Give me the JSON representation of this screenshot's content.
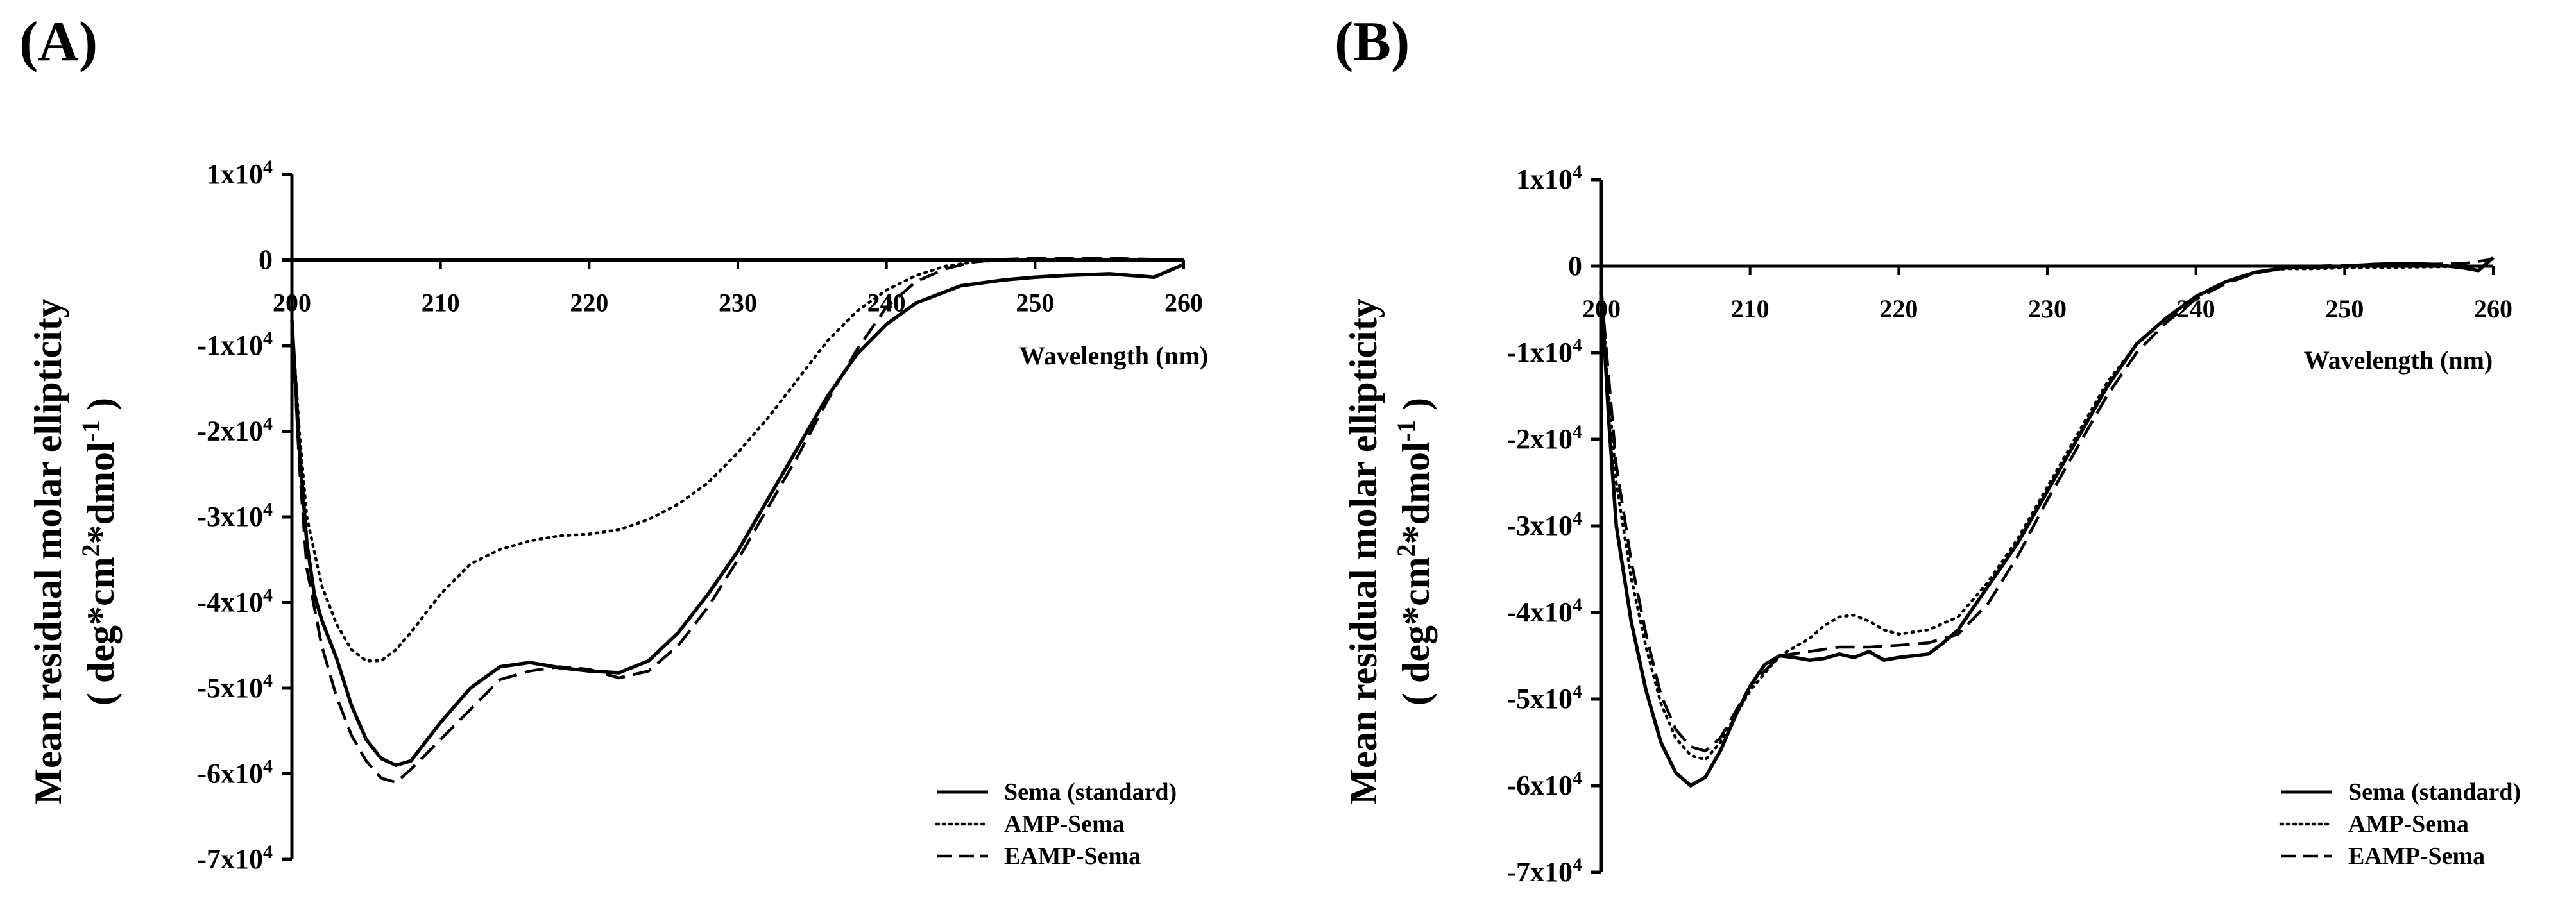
{
  "chart_data": [
    {
      "panel": "(A)",
      "type": "line",
      "title": "",
      "xlabel": "Wavelength (nm)",
      "ylabel_line1": "Mean residual molar ellipticity",
      "ylabel_line2_pre": "( deg*cm",
      "ylabel_sup1": "2",
      "ylabel_line2_mid": "*dmol",
      "ylabel_sup2": "-1",
      "ylabel_line2_post": " )",
      "xlim": [
        200,
        260
      ],
      "ylim": [
        -70000,
        10000
      ],
      "xticks": [
        "200",
        "210",
        "220",
        "230",
        "240",
        "250",
        "260"
      ],
      "yticks": [
        {
          "value": 10000,
          "base": "1x10",
          "exp": "4"
        },
        {
          "value": 0,
          "base": "0",
          "exp": ""
        },
        {
          "value": -10000,
          "base": "-1x10",
          "exp": "4"
        },
        {
          "value": -20000,
          "base": "-2x10",
          "exp": "4"
        },
        {
          "value": -30000,
          "base": "-3x10",
          "exp": "4"
        },
        {
          "value": -40000,
          "base": "-4x10",
          "exp": "4"
        },
        {
          "value": -50000,
          "base": "-5x10",
          "exp": "4"
        },
        {
          "value": -60000,
          "base": "-6x10",
          "exp": "4"
        },
        {
          "value": -70000,
          "base": "-7x10",
          "exp": "4"
        }
      ],
      "series": [
        {
          "name": "Sema (standard)",
          "style": "solid",
          "x": [
            200,
            200.5,
            201,
            201.5,
            202,
            203,
            204,
            205,
            206,
            207,
            208,
            210,
            212,
            214,
            216,
            218,
            220,
            222,
            224,
            226,
            228,
            230,
            232,
            234,
            236,
            238,
            240,
            242,
            245,
            248,
            250,
            252,
            255,
            258,
            260
          ],
          "y": [
            -7000,
            -22000,
            -33000,
            -39000,
            -42000,
            -46500,
            -52000,
            -56000,
            -58200,
            -59000,
            -58500,
            -54000,
            -50000,
            -47500,
            -47000,
            -47600,
            -48000,
            -48200,
            -46800,
            -43500,
            -39000,
            -34000,
            -28000,
            -22000,
            -16000,
            -11000,
            -7500,
            -5000,
            -3000,
            -2300,
            -2000,
            -1800,
            -1600,
            -2000,
            -500
          ]
        },
        {
          "name": "AMP-Sema",
          "style": "dotted",
          "x": [
            200,
            200.5,
            201,
            202,
            203,
            204,
            205,
            206,
            207,
            208,
            210,
            212,
            214,
            216,
            218,
            220,
            222,
            224,
            226,
            228,
            230,
            232,
            234,
            236,
            238,
            240,
            242,
            244,
            246,
            248,
            250,
            255,
            260
          ],
          "y": [
            -7000,
            -20000,
            -30000,
            -38000,
            -42500,
            -45500,
            -46800,
            -46800,
            -45500,
            -43500,
            -39000,
            -35500,
            -33800,
            -32800,
            -32200,
            -32000,
            -31500,
            -30300,
            -28500,
            -26000,
            -22500,
            -18500,
            -14000,
            -9500,
            -6000,
            -3500,
            -1800,
            -700,
            -200,
            0,
            100,
            0,
            0
          ]
        },
        {
          "name": "EAMP-Sema",
          "style": "dashed",
          "x": [
            200,
            200.5,
            201,
            202,
            203,
            204,
            205,
            206,
            207,
            208,
            210,
            212,
            214,
            216,
            218,
            220,
            222,
            224,
            226,
            228,
            230,
            232,
            234,
            236,
            238,
            240,
            242,
            244,
            246,
            248,
            250,
            255,
            260
          ],
          "y": [
            -7000,
            -24000,
            -36000,
            -45000,
            -51000,
            -55500,
            -58500,
            -60500,
            -61000,
            -59500,
            -56000,
            -52500,
            -49000,
            -48000,
            -47500,
            -47800,
            -48800,
            -48000,
            -45000,
            -40500,
            -35000,
            -29000,
            -23000,
            -16500,
            -10500,
            -5500,
            -2500,
            -1000,
            -200,
            100,
            200,
            200,
            0
          ]
        }
      ]
    },
    {
      "panel": "(B)",
      "type": "line",
      "title": "",
      "xlabel": "Wavelength (nm)",
      "ylabel_line1": "Mean residual molar ellipticity",
      "ylabel_line2_pre": "( deg*cm",
      "ylabel_sup1": "2",
      "ylabel_line2_mid": "*dmol",
      "ylabel_sup2": "-1",
      "ylabel_line2_post": " )",
      "xlim": [
        200,
        260
      ],
      "ylim": [
        -70000,
        10000
      ],
      "xticks": [
        "200",
        "210",
        "220",
        "230",
        "240",
        "250",
        "260"
      ],
      "yticks": [
        {
          "value": 10000,
          "base": "1x10",
          "exp": "4"
        },
        {
          "value": 0,
          "base": "0",
          "exp": ""
        },
        {
          "value": -10000,
          "base": "-1x10",
          "exp": "4"
        },
        {
          "value": -20000,
          "base": "-2x10",
          "exp": "4"
        },
        {
          "value": -30000,
          "base": "-3x10",
          "exp": "4"
        },
        {
          "value": -40000,
          "base": "-4x10",
          "exp": "4"
        },
        {
          "value": -50000,
          "base": "-5x10",
          "exp": "4"
        },
        {
          "value": -60000,
          "base": "-6x10",
          "exp": "4"
        },
        {
          "value": -70000,
          "base": "-7x10",
          "exp": "4"
        }
      ],
      "series": [
        {
          "name": "Sema (standard)",
          "style": "solid",
          "x": [
            200,
            200.5,
            201,
            202,
            203,
            204,
            205,
            206,
            207,
            208,
            209,
            210,
            211,
            212,
            213,
            214,
            215,
            216,
            217,
            218,
            219,
            220,
            221,
            222,
            223,
            224,
            226,
            228,
            230,
            232,
            234,
            236,
            238,
            240,
            242,
            244,
            246,
            248,
            250,
            252,
            254,
            256,
            258,
            259,
            260
          ],
          "y": [
            -3000,
            -18000,
            -30000,
            -41000,
            -49000,
            -55000,
            -58500,
            -60000,
            -59000,
            -56000,
            -52000,
            -48500,
            -46000,
            -45000,
            -45200,
            -45500,
            -45300,
            -44800,
            -45200,
            -44500,
            -45500,
            -45200,
            -45000,
            -44800,
            -43500,
            -42000,
            -37000,
            -32000,
            -26000,
            -20000,
            -14000,
            -9000,
            -6000,
            -3500,
            -1800,
            -700,
            -200,
            -100,
            0,
            200,
            300,
            200,
            -200,
            -500,
            1000
          ]
        },
        {
          "name": "AMP-Sema",
          "style": "dotted",
          "x": [
            200,
            200.5,
            201,
            202,
            203,
            204,
            205,
            206,
            207,
            208,
            210,
            212,
            214,
            215,
            216,
            217,
            218,
            219,
            220,
            222,
            224,
            226,
            228,
            230,
            232,
            234,
            236,
            238,
            240,
            242,
            244,
            246,
            248,
            250,
            255,
            260
          ],
          "y": [
            -3000,
            -15000,
            -25000,
            -36000,
            -44000,
            -50500,
            -54500,
            -56500,
            -57000,
            -55000,
            -49000,
            -45000,
            -43000,
            -41500,
            -40500,
            -40300,
            -41000,
            -42000,
            -42500,
            -42000,
            -40500,
            -36500,
            -31500,
            -25500,
            -19500,
            -13500,
            -9000,
            -6000,
            -3500,
            -1800,
            -700,
            -300,
            -300,
            -200,
            -100,
            0
          ]
        },
        {
          "name": "EAMP-Sema",
          "style": "dashed",
          "x": [
            200,
            200.5,
            201,
            202,
            203,
            204,
            205,
            206,
            207,
            208,
            210,
            212,
            214,
            216,
            218,
            220,
            222,
            224,
            226,
            228,
            230,
            232,
            234,
            236,
            238,
            240,
            242,
            244,
            246,
            248,
            250,
            255,
            258,
            260
          ],
          "y": [
            -3000,
            -13000,
            -23000,
            -34000,
            -42500,
            -49500,
            -53500,
            -55500,
            -56000,
            -54500,
            -48500,
            -45000,
            -44500,
            -44000,
            -44000,
            -43800,
            -43500,
            -42500,
            -39000,
            -33500,
            -27000,
            -21000,
            -15000,
            -10000,
            -6500,
            -3800,
            -2000,
            -800,
            -200,
            0,
            100,
            200,
            300,
            800
          ]
        }
      ]
    }
  ],
  "legend": [
    "Sema (standard)",
    "AMP-Sema",
    "EAMP-Sema"
  ]
}
